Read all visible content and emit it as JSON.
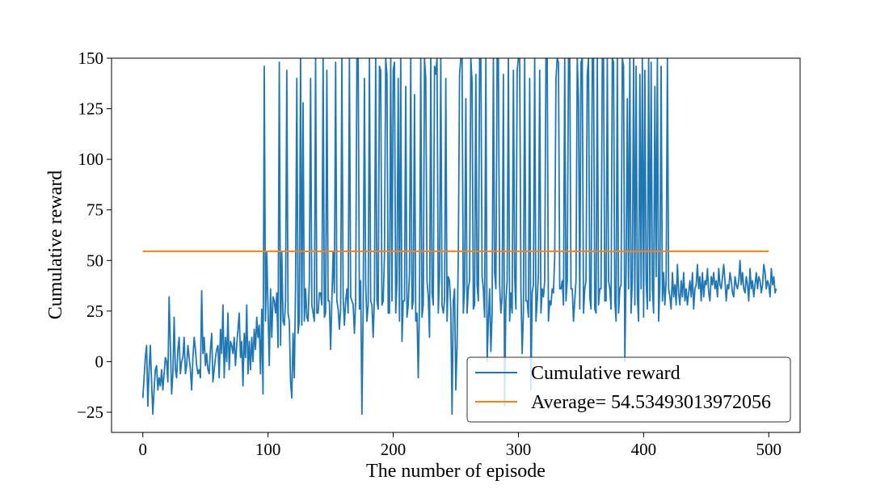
{
  "chart_data": {
    "type": "line",
    "title": "",
    "xlabel": "The number of episode",
    "ylabel": "Cumulative reward",
    "xlim": [
      -25,
      525
    ],
    "ylim": [
      -35,
      150
    ],
    "x_ticks": [
      0,
      100,
      200,
      300,
      400,
      500
    ],
    "y_ticks": [
      -25,
      0,
      25,
      50,
      75,
      100,
      125,
      150
    ],
    "x_tick_labels": [
      "0",
      "100",
      "200",
      "300",
      "400",
      "500"
    ],
    "y_tick_labels": [
      "−25",
      "0",
      "25",
      "50",
      "75",
      "100",
      "125",
      "150"
    ],
    "grid": false,
    "legend_position": "lower-right",
    "series": [
      {
        "name": "Cumulative reward",
        "color": "#1f77b4",
        "x_start": 0,
        "x_step": 1,
        "values": [
          -18,
          -8,
          2,
          8,
          -22,
          -4,
          8,
          -10,
          -26,
          -14,
          -4,
          -2,
          -14,
          -8,
          -12,
          -4,
          -14,
          -6,
          2,
          0,
          -10,
          32,
          8,
          -16,
          -6,
          22,
          -4,
          -8,
          6,
          12,
          -6,
          0,
          2,
          12,
          -6,
          -2,
          8,
          2,
          -4,
          -14,
          2,
          12,
          6,
          -2,
          -6,
          -4,
          -8,
          35,
          4,
          12,
          -2,
          4,
          -4,
          -6,
          6,
          14,
          -10,
          -4,
          2,
          6,
          8,
          -8,
          16,
          4,
          28,
          -8,
          12,
          0,
          24,
          -4,
          10,
          8,
          4,
          12,
          -2,
          8,
          16,
          24,
          2,
          10,
          -12,
          14,
          2,
          28,
          -6,
          10,
          -4,
          12,
          0,
          16,
          6,
          22,
          12,
          18,
          -6,
          26,
          -16,
          16,
          4,
          14,
          26,
          -2,
          18,
          12,
          32,
          12,
          24,
          20,
          16,
          18,
          8,
          24,
          28,
          18,
          22,
          30,
          24,
          14,
          10,
          28,
          44,
          30,
          38,
          26,
          14,
          24,
          34,
          18,
          10,
          20,
          26,
          22,
          36,
          40,
          30,
          28,
          24,
          0,
          10,
          24,
          22,
          34,
          18,
          28,
          42,
          22,
          26,
          14,
          30,
          24,
          20,
          30,
          28,
          34,
          38,
          30,
          26,
          146,
          26,
          34,
          32,
          28,
          30,
          26,
          24,
          130,
          32,
          36,
          28,
          40,
          30,
          26,
          152,
          34,
          40,
          146,
          26,
          32,
          38,
          22,
          28,
          36,
          30,
          40,
          28,
          32,
          24,
          30,
          36,
          146,
          8,
          28,
          -10,
          52,
          40,
          142,
          -18,
          24,
          136,
          30,
          -8,
          148,
          28,
          40,
          134,
          20,
          28,
          10,
          146,
          30,
          38,
          22,
          148,
          44,
          150,
          26,
          34,
          132,
          40,
          24,
          146,
          30,
          138,
          22,
          36,
          150,
          28,
          40,
          124,
          12,
          44,
          34,
          22,
          146,
          38,
          150,
          26,
          42,
          -18,
          28,
          150,
          30,
          126,
          20,
          150,
          40,
          22,
          -26,
          140,
          36,
          150,
          8,
          26,
          142,
          48,
          150,
          20,
          36,
          130,
          24,
          150,
          40,
          2,
          138,
          32,
          28,
          146,
          38,
          24,
          150,
          30,
          42,
          140,
          22,
          150,
          0,
          50,
          36,
          146,
          24,
          140,
          44,
          28,
          150,
          20,
          38,
          142,
          32,
          36,
          -22,
          146,
          40,
          30,
          20,
          148,
          24,
          150,
          42,
          -8,
          144,
          28,
          150,
          36,
          46,
          24,
          140,
          30,
          150,
          22,
          148,
          -14,
          126,
          38,
          148,
          20,
          150,
          44,
          150,
          24,
          142,
          32,
          -4,
          150,
          40,
          20,
          136,
          28,
          150,
          34,
          24,
          140,
          22,
          148,
          18,
          36,
          150,
          28,
          140,
          30,
          6,
          150,
          24,
          36,
          126,
          20,
          150,
          40,
          28,
          130,
          22,
          148,
          30,
          24,
          138,
          40,
          20,
          150,
          36,
          26,
          4,
          150,
          30,
          24,
          142,
          28,
          146,
          36,
          22,
          150,
          24,
          30,
          138,
          40,
          150,
          26,
          32,
          148,
          30,
          20,
          150,
          24,
          150,
          38,
          16,
          146,
          26,
          44,
          130,
          36,
          150,
          24,
          40,
          150,
          28,
          146,
          32,
          20,
          142,
          36,
          150,
          22,
          144,
          40,
          26,
          150,
          30,
          148,
          36,
          24,
          136,
          42,
          150,
          20,
          38,
          146,
          30,
          44,
          28,
          40,
          150,
          36,
          32,
          26,
          44,
          32,
          38,
          28,
          48,
          34,
          28,
          40,
          32,
          44,
          30,
          36,
          28,
          34,
          40,
          32,
          44,
          26,
          36,
          38,
          48,
          36,
          42,
          30,
          44,
          32,
          40,
          38,
          46,
          34,
          30,
          42,
          38,
          44,
          36,
          40,
          32,
          46,
          38,
          36,
          42,
          48,
          40,
          30,
          38,
          36,
          44,
          40,
          34,
          32,
          42,
          38,
          36,
          40,
          50,
          38,
          44,
          36,
          34,
          42,
          38,
          30,
          46,
          36,
          40,
          32,
          38,
          44,
          36,
          42,
          40,
          34,
          38,
          48,
          44,
          36,
          40,
          38,
          32,
          46,
          38,
          42,
          34,
          36
        ],
        "overrides": {
          "97": 146,
          "98": 20,
          "99": 54,
          "100": 26,
          "102": 36,
          "105": 30,
          "107": 34,
          "108": 7,
          "109": 148,
          "111": 54,
          "112": 20,
          "114": 30,
          "115": 144,
          "117": 20,
          "118": -10,
          "119": -18,
          "120": 14,
          "121": -8,
          "123": 140,
          "125": 20,
          "126": 152,
          "128": 128,
          "130": 36,
          "132": 20,
          "134": 140,
          "137": 20,
          "138": 150,
          "140": 24,
          "142": 34,
          "144": 152,
          "146": 24,
          "147": 144,
          "149": 30,
          "150": 6,
          "152": 54,
          "154": 148,
          "157": 16,
          "159": 150,
          "161": 18,
          "163": 36,
          "165": 150,
          "167": 30,
          "169": 14,
          "171": 150,
          "173": 26,
          "175": -26,
          "177": 140,
          "179": 20,
          "181": 150,
          "183": 28,
          "184": 12,
          "186": 150,
          "188": 26,
          "190": 144,
          "192": 30,
          "194": 150,
          "196": 24,
          "198": 150,
          "200": 144,
          "202": 24,
          "204": 140,
          "206": 150,
          "208": 30,
          "210": 136,
          "212": 28,
          "214": 150,
          "216": 30,
          "218": 20,
          "220": -8,
          "222": 150,
          "224": 28,
          "226": 140,
          "228": 32,
          "230": 150,
          "232": 28,
          "234": 142,
          "236": 24,
          "238": 150,
          "240": 24,
          "242": 140,
          "244": 42,
          "246": 26,
          "248": 30,
          "250": -14,
          "252": 54,
          "254": 150,
          "256": 24,
          "258": 130,
          "260": 36,
          "262": 150,
          "264": 26,
          "266": 142,
          "268": 30,
          "270": 150,
          "272": 36,
          "274": 150,
          "276": 20,
          "278": 5,
          "280": 150,
          "282": 36,
          "284": 150,
          "286": 24,
          "288": 142,
          "290": 30,
          "292": 150,
          "294": 34,
          "296": 144,
          "298": 26,
          "300": 150,
          "302": 36,
          "303": 4,
          "305": 150,
          "307": 30,
          "309": 140,
          "311": 34,
          "313": 150,
          "315": 30,
          "317": 144,
          "319": 36,
          "321": 40,
          "323": 150,
          "325": 30,
          "327": 36,
          "329": 52,
          "331": 150,
          "333": 36,
          "335": 40,
          "337": 150,
          "339": 40,
          "341": 150,
          "343": 36,
          "345": 30,
          "347": 150,
          "349": 26,
          "351": 150,
          "353": 36,
          "355": 142,
          "357": 32,
          "359": 150,
          "361": 26,
          "363": 150,
          "365": 36,
          "367": 150,
          "369": 30,
          "371": 150,
          "373": 36,
          "375": 150,
          "377": 30,
          "379": 150,
          "381": 36,
          "383": 150,
          "385": 0
        }
      },
      {
        "name": "Average= 54.53493013972056",
        "color": "#ff7f0e",
        "x": [
          0,
          500
        ],
        "values": [
          54.53493013972056,
          54.53493013972056
        ]
      }
    ]
  }
}
